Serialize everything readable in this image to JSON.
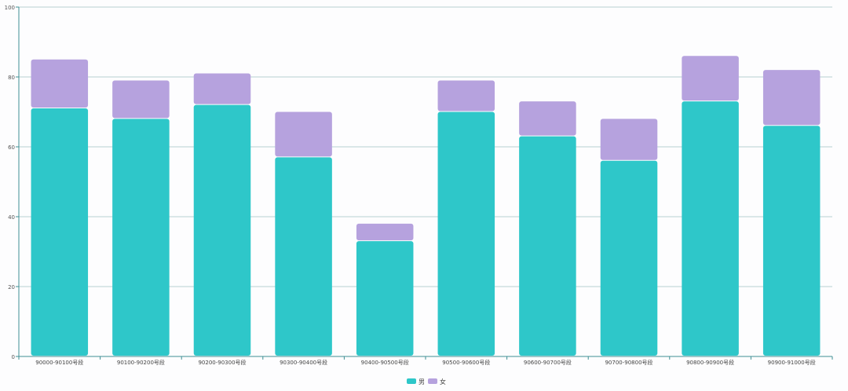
{
  "chart_data": {
    "type": "bar",
    "stacked": true,
    "categories": [
      "90000-90100号段",
      "90100-90200号段",
      "90200-90300号段",
      "90300-90400号段",
      "90400-90500号段",
      "90500-90600号段",
      "90600-90700号段",
      "90700-90800号段",
      "90800-90900号段",
      "90900-91000号段"
    ],
    "series": [
      {
        "name": "男",
        "color": "#2ec7c9",
        "values": [
          71,
          68,
          72,
          57,
          33,
          70,
          63,
          56,
          73,
          66
        ]
      },
      {
        "name": "女",
        "color": "#b6a2de",
        "values": [
          14,
          11,
          9,
          13,
          5,
          9,
          10,
          12,
          13,
          16
        ]
      }
    ],
    "ylim": [
      0,
      100
    ],
    "yticks": [
      "0",
      "20",
      "40",
      "60",
      "80",
      "100"
    ],
    "grid": true,
    "legend_position": "bottom-center",
    "title": "",
    "xlabel": "",
    "ylabel": ""
  }
}
